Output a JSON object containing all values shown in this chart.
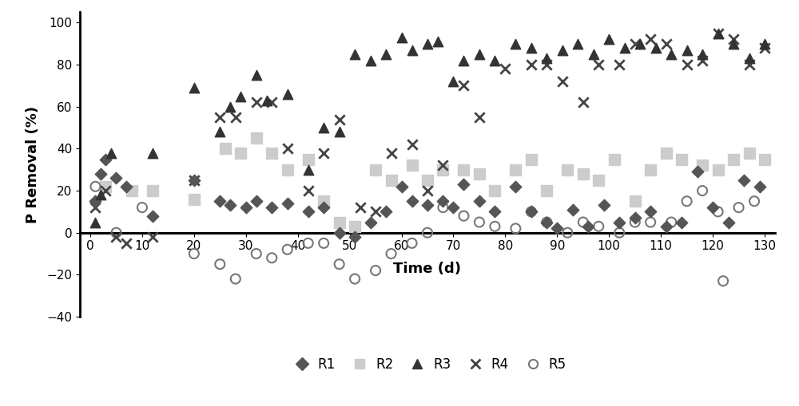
{
  "xlabel": "Time (d)",
  "ylabel": "P Removal (%)",
  "xlim": [
    -2,
    132
  ],
  "ylim": [
    -40,
    105
  ],
  "yticks": [
    -40,
    -20,
    0,
    20,
    40,
    60,
    80,
    100
  ],
  "xticks": [
    0,
    10,
    20,
    30,
    40,
    50,
    60,
    70,
    80,
    90,
    100,
    110,
    120,
    130
  ],
  "R1": {
    "x": [
      1,
      2,
      3,
      5,
      7,
      12,
      20,
      25,
      27,
      30,
      32,
      35,
      38,
      42,
      45,
      48,
      51,
      54,
      57,
      60,
      62,
      65,
      68,
      70,
      72,
      75,
      78,
      82,
      85,
      88,
      90,
      93,
      96,
      99,
      102,
      105,
      108,
      111,
      114,
      117,
      120,
      123,
      126,
      129
    ],
    "y": [
      15,
      28,
      35,
      26,
      22,
      8,
      25,
      15,
      13,
      12,
      15,
      12,
      14,
      10,
      12,
      0,
      -2,
      5,
      10,
      22,
      15,
      13,
      15,
      12,
      23,
      15,
      10,
      22,
      10,
      5,
      2,
      11,
      3,
      13,
      5,
      7,
      10,
      3,
      5,
      29,
      12,
      5,
      25,
      22
    ],
    "color": "#555555",
    "marker": "D",
    "label": "R1",
    "size": 55
  },
  "R2": {
    "x": [
      3,
      8,
      12,
      20,
      26,
      29,
      32,
      35,
      38,
      42,
      45,
      48,
      51,
      55,
      58,
      62,
      65,
      68,
      72,
      75,
      78,
      82,
      85,
      88,
      92,
      95,
      98,
      101,
      105,
      108,
      111,
      114,
      118,
      121,
      124,
      127,
      130
    ],
    "y": [
      22,
      20,
      20,
      16,
      40,
      38,
      45,
      38,
      30,
      35,
      15,
      5,
      3,
      30,
      25,
      32,
      25,
      30,
      30,
      28,
      20,
      30,
      35,
      20,
      30,
      28,
      25,
      35,
      15,
      30,
      38,
      35,
      32,
      30,
      35,
      38,
      35
    ],
    "color": "#cccccc",
    "marker": "s",
    "label": "R2",
    "size": 90
  },
  "R3": {
    "x": [
      1,
      2,
      4,
      12,
      20,
      25,
      27,
      29,
      32,
      34,
      38,
      42,
      45,
      48,
      51,
      54,
      57,
      60,
      62,
      65,
      67,
      70,
      72,
      75,
      78,
      82,
      85,
      88,
      91,
      94,
      97,
      100,
      103,
      106,
      109,
      112,
      115,
      118,
      121,
      124,
      127,
      130
    ],
    "y": [
      5,
      18,
      38,
      38,
      69,
      48,
      60,
      65,
      75,
      63,
      66,
      30,
      50,
      48,
      85,
      82,
      85,
      93,
      87,
      90,
      91,
      72,
      82,
      85,
      82,
      90,
      88,
      83,
      87,
      90,
      85,
      92,
      88,
      90,
      88,
      85,
      87,
      85,
      95,
      90,
      83,
      90
    ],
    "color": "#333333",
    "marker": "^",
    "label": "R3",
    "size": 80
  },
  "R4": {
    "x": [
      1,
      3,
      5,
      7,
      12,
      20,
      25,
      28,
      32,
      35,
      38,
      42,
      45,
      48,
      52,
      55,
      58,
      62,
      65,
      68,
      72,
      75,
      80,
      85,
      88,
      91,
      95,
      98,
      102,
      105,
      108,
      111,
      115,
      118,
      121,
      124,
      127,
      130
    ],
    "y": [
      12,
      20,
      -2,
      -5,
      -2,
      25,
      55,
      55,
      62,
      62,
      40,
      20,
      38,
      54,
      12,
      10,
      38,
      42,
      20,
      32,
      70,
      55,
      78,
      80,
      80,
      72,
      62,
      80,
      80,
      90,
      92,
      90,
      80,
      82,
      95,
      92,
      80,
      88
    ],
    "color": "#444444",
    "marker": "x",
    "label": "R4",
    "size": 80
  },
  "R5": {
    "x": [
      1,
      5,
      10,
      20,
      25,
      28,
      32,
      35,
      38,
      42,
      45,
      48,
      51,
      55,
      58,
      62,
      65,
      68,
      72,
      75,
      78,
      82,
      85,
      88,
      92,
      95,
      98,
      102,
      105,
      108,
      112,
      115,
      118,
      121,
      122,
      125,
      128
    ],
    "y": [
      22,
      0,
      12,
      -10,
      -15,
      -22,
      -10,
      -12,
      -8,
      -5,
      -5,
      -15,
      -22,
      -18,
      -10,
      -5,
      0,
      12,
      8,
      5,
      3,
      2,
      10,
      5,
      0,
      5,
      3,
      0,
      5,
      5,
      5,
      15,
      20,
      10,
      -23,
      12,
      15
    ],
    "color": "#aaaaaa",
    "marker": "o",
    "label": "R5",
    "size": 75
  }
}
